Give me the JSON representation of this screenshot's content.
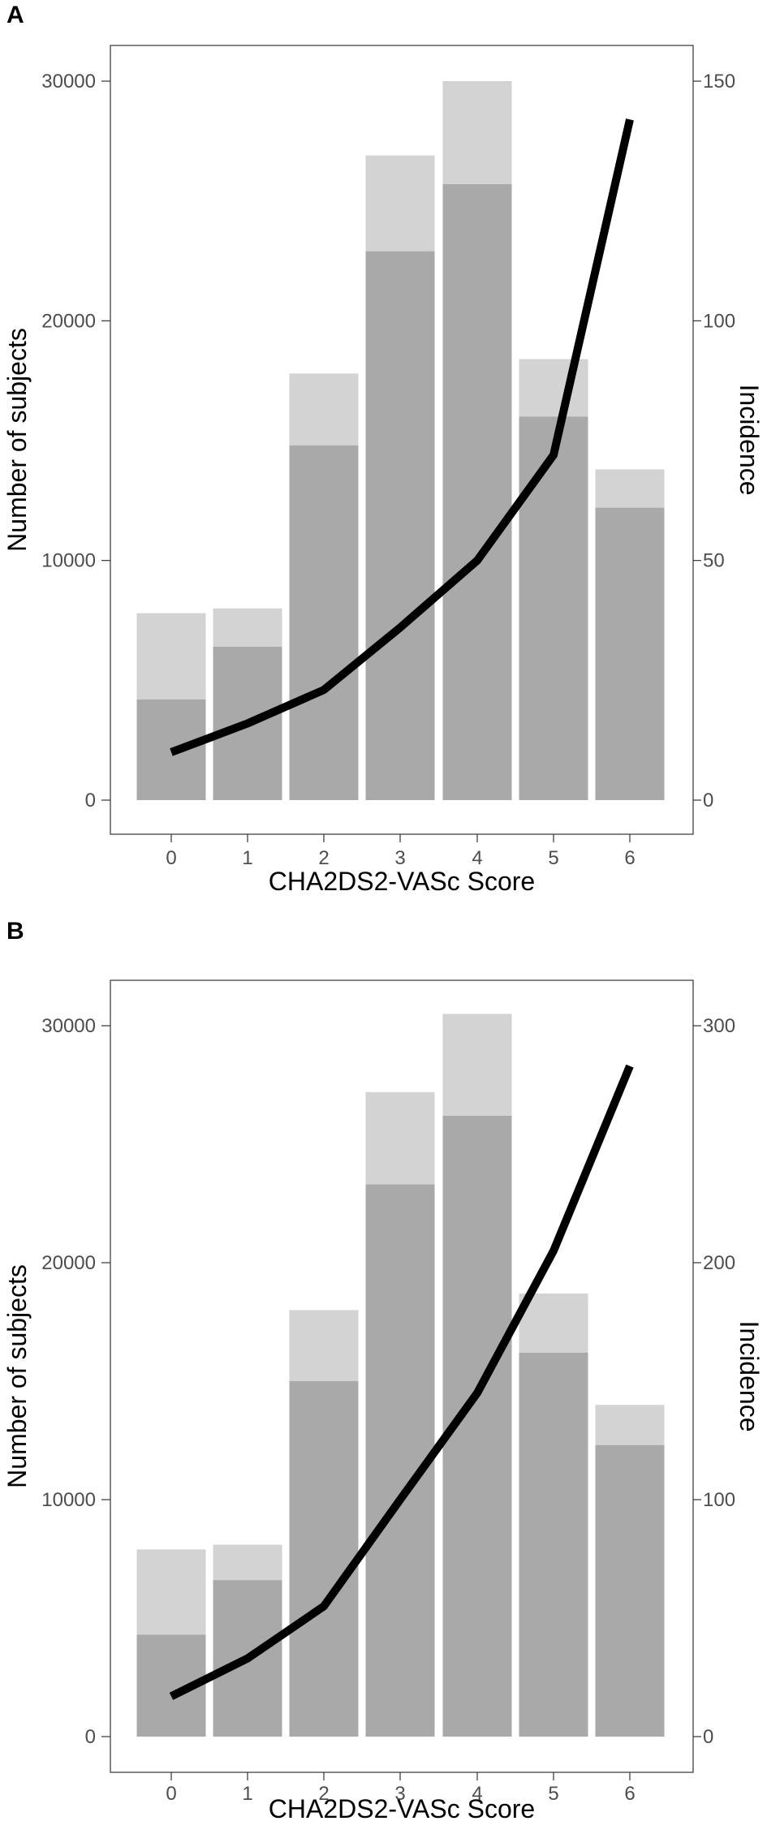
{
  "figure": {
    "panels": [
      "A",
      "B"
    ]
  },
  "chart_data": [
    {
      "panel": "A",
      "type": "bar",
      "xlabel": "CHA2DS2-VASc Score",
      "ylabel": "Number of subjects",
      "y2label": "Incidence",
      "categories": [
        "0",
        "1",
        "2",
        "3",
        "4",
        "5",
        "6"
      ],
      "ylim": [
        0,
        32000
      ],
      "y_ticks": [
        0,
        10000,
        20000,
        30000
      ],
      "y2lim": [
        0,
        160
      ],
      "y2_ticks": [
        0,
        50,
        100,
        150
      ],
      "grid": false,
      "series": [
        {
          "kind": "bar",
          "color": "#d3d3d3",
          "values": [
            7800,
            8000,
            17800,
            26900,
            30000,
            18400,
            13800
          ]
        },
        {
          "kind": "bar",
          "color": "#a9a9a9",
          "values": [
            4200,
            6400,
            14800,
            22900,
            25700,
            16000,
            12200
          ]
        },
        {
          "kind": "line",
          "axis": "secondary",
          "color": "#000000",
          "values": [
            10,
            16,
            23,
            36,
            50,
            72,
            142
          ]
        }
      ]
    },
    {
      "panel": "B",
      "type": "bar",
      "xlabel": "CHA2DS2-VASc Score",
      "ylabel": "Number of subjects",
      "y2label": "Incidence",
      "categories": [
        "0",
        "1",
        "2",
        "3",
        "4",
        "5",
        "6"
      ],
      "ylim": [
        0,
        32000
      ],
      "y_ticks": [
        0,
        10000,
        20000,
        30000
      ],
      "y2lim": [
        0,
        320
      ],
      "y2_ticks": [
        0,
        100,
        200,
        300
      ],
      "grid": false,
      "series": [
        {
          "kind": "bar",
          "color": "#d3d3d3",
          "values": [
            7900,
            8100,
            18000,
            27200,
            30500,
            18700,
            14000
          ]
        },
        {
          "kind": "bar",
          "color": "#a9a9a9",
          "values": [
            4300,
            6600,
            15000,
            23300,
            26200,
            16200,
            12300
          ]
        },
        {
          "kind": "line",
          "axis": "secondary",
          "color": "#000000",
          "values": [
            17,
            33,
            55,
            100,
            145,
            205,
            283
          ]
        }
      ]
    }
  ]
}
